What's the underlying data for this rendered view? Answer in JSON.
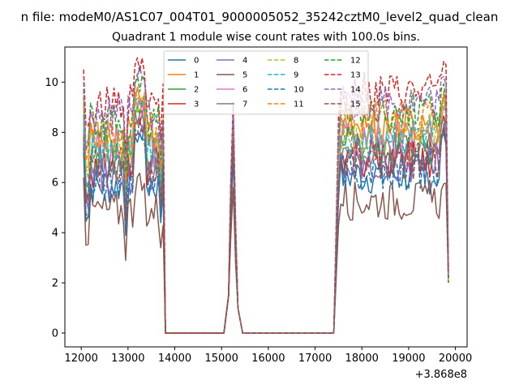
{
  "chart_data": {
    "type": "line",
    "suptitle": "n file: modeM0/AS1C07_004T01_9000005052_35242cztM0_level2_quad_clean",
    "title": "Quadrant 1 module wise count rates with 100.0s bins.",
    "xlabel": "",
    "ylabel": "",
    "x_offset_label": "+3.868e8",
    "xlim": [
      11650,
      20250
    ],
    "ylim": [
      -0.55,
      11.4
    ],
    "x_ticks": [
      12000,
      13000,
      14000,
      15000,
      16000,
      17000,
      18000,
      19000,
      20000
    ],
    "y_ticks": [
      0,
      2,
      4,
      6,
      8,
      10
    ],
    "grid": false,
    "legend": {
      "placement": "top-center",
      "columns": 4
    },
    "segments": [
      {
        "x_start": 12050,
        "x_end": 13750,
        "step": 50
      },
      {
        "x_start": 15100,
        "x_end": 15400,
        "step": 50
      },
      {
        "x_start": 17500,
        "x_end": 19850,
        "step": 50
      }
    ],
    "series": [
      {
        "name": "0",
        "color": "#1f77b4",
        "dash": "solid",
        "level": 5.9,
        "peak": 7.9,
        "spike": 6.8
      },
      {
        "name": "1",
        "color": "#ff7f0e",
        "dash": "solid",
        "level": 7.9,
        "peak": 9.4,
        "spike": 8.3
      },
      {
        "name": "2",
        "color": "#2ca02c",
        "dash": "solid",
        "level": 7.1,
        "peak": 8.9,
        "spike": 8.0
      },
      {
        "name": "3",
        "color": "#d62728",
        "dash": "solid",
        "level": 6.6,
        "peak": 8.6,
        "spike": 7.6
      },
      {
        "name": "4",
        "color": "#9467bd",
        "dash": "solid",
        "level": 6.3,
        "peak": 8.3,
        "spike": 7.2
      },
      {
        "name": "5",
        "color": "#8c564b",
        "dash": "solid",
        "level": 4.9,
        "peak": 5.9,
        "spike": 5.6
      },
      {
        "name": "6",
        "color": "#e377c2",
        "dash": "solid",
        "level": 7.3,
        "peak": 9.0,
        "spike": 8.1
      },
      {
        "name": "7",
        "color": "#7f7f7f",
        "dash": "solid",
        "level": 6.8,
        "peak": 8.5,
        "spike": 7.8
      },
      {
        "name": "8",
        "color": "#bcbd22",
        "dash": "dashed",
        "level": 7.6,
        "peak": 9.2,
        "spike": 8.4
      },
      {
        "name": "9",
        "color": "#17becf",
        "dash": "dashed",
        "level": 7.4,
        "peak": 9.1,
        "spike": 8.2
      },
      {
        "name": "10",
        "color": "#1f77b4",
        "dash": "dashed",
        "level": 6.1,
        "peak": 8.0,
        "spike": 7.0
      },
      {
        "name": "11",
        "color": "#ff7f0e",
        "dash": "dashed",
        "level": 8.1,
        "peak": 9.6,
        "spike": 8.5
      },
      {
        "name": "12",
        "color": "#2ca02c",
        "dash": "dashed",
        "level": 8.4,
        "peak": 9.9,
        "spike": 8.6
      },
      {
        "name": "13",
        "color": "#d62728",
        "dash": "dashed",
        "level": 9.2,
        "peak": 10.8,
        "spike": 9.0
      },
      {
        "name": "14",
        "color": "#9467bd",
        "dash": "dashed",
        "level": 8.7,
        "peak": 10.2,
        "spike": 8.7
      },
      {
        "name": "15",
        "color": "#8c564b",
        "dash": "dashed",
        "level": 6.5,
        "peak": 8.2,
        "spike": 7.4
      }
    ]
  }
}
